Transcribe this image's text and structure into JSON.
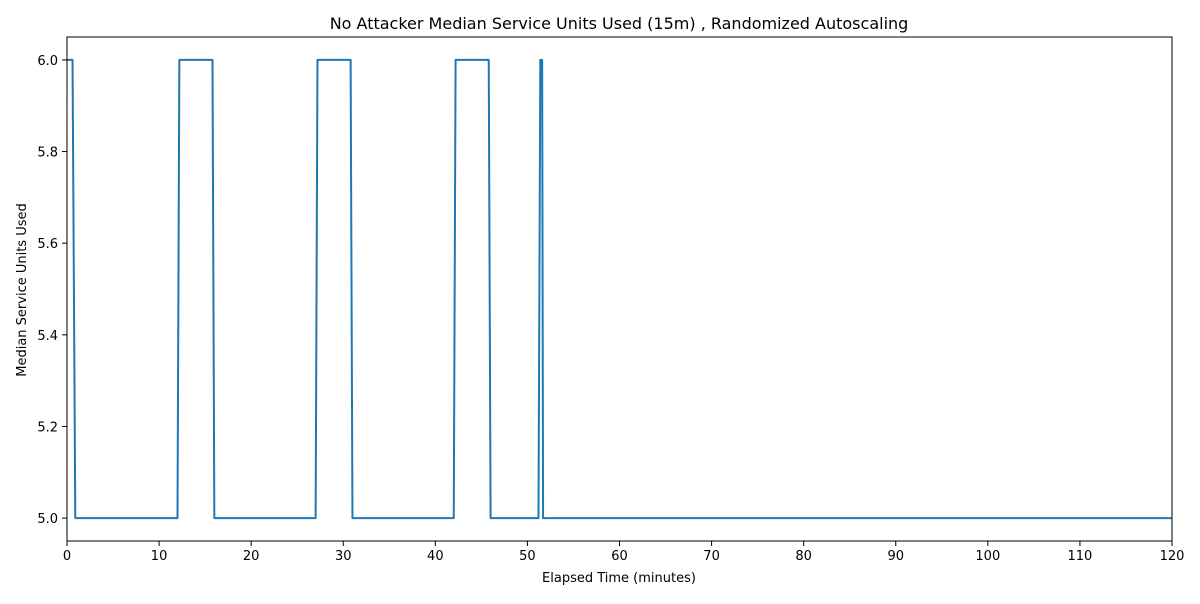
{
  "chart_data": {
    "type": "line",
    "title": "No Attacker Median Service Units Used (15m) , Randomized Autoscaling",
    "xlabel": "Elapsed Time (minutes)",
    "ylabel": "Median Service Units Used",
    "xlim": [
      0,
      120
    ],
    "ylim": [
      4.95,
      6.05
    ],
    "x_ticks": [
      0,
      10,
      20,
      30,
      40,
      50,
      60,
      70,
      80,
      90,
      100,
      110,
      120
    ],
    "x_tick_labels": [
      "0",
      "10",
      "20",
      "30",
      "40",
      "50",
      "60",
      "70",
      "80",
      "90",
      "100",
      "110",
      "120"
    ],
    "y_ticks": [
      5.0,
      5.2,
      5.4,
      5.6,
      5.8,
      6.0
    ],
    "y_tick_labels": [
      "5.0",
      "5.2",
      "5.4",
      "5.6",
      "5.8",
      "6.0"
    ],
    "grid": false,
    "legend": "none",
    "series": [
      {
        "color": "#1f77b4",
        "x": [
          0.0,
          0.6,
          0.9,
          1.0,
          12.0,
          12.2,
          15.8,
          16.0,
          27.0,
          27.2,
          30.8,
          31.0,
          42.0,
          42.2,
          45.8,
          46.0,
          51.2,
          51.4,
          51.6,
          51.7,
          120.0
        ],
        "y": [
          6.0,
          6.0,
          5.0,
          5.0,
          5.0,
          6.0,
          6.0,
          5.0,
          5.0,
          6.0,
          6.0,
          5.0,
          5.0,
          6.0,
          6.0,
          5.0,
          5.0,
          6.0,
          6.0,
          5.0,
          5.0
        ]
      }
    ]
  }
}
